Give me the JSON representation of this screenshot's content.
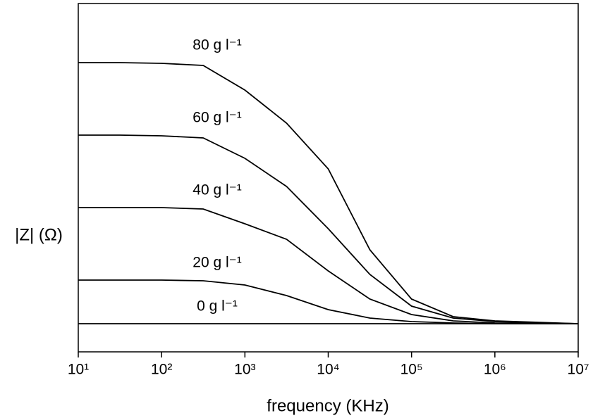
{
  "chart_data": {
    "type": "line",
    "xlabel": "frequency (KHz)",
    "ylabel": "|Z| (Ω)",
    "xscale": "log",
    "x": [
      10,
      31.6,
      100,
      316,
      1000,
      3162,
      10000,
      31623,
      100000,
      316228,
      1000000,
      10000000
    ],
    "xlim": [
      10,
      10000000
    ],
    "xticks": [
      {
        "value": 10,
        "label": "10¹"
      },
      {
        "value": 100,
        "label": "10²"
      },
      {
        "value": 1000,
        "label": "10³"
      },
      {
        "value": 10000,
        "label": "10⁴"
      },
      {
        "value": 100000,
        "label": "10⁵"
      },
      {
        "value": 1000000,
        "label": "10⁶"
      },
      {
        "value": 10000000,
        "label": "10⁷"
      }
    ],
    "ylim": [
      -40,
      455
    ],
    "series": [
      {
        "name": "80 g l⁻¹",
        "color": "#000000",
        "values": [
          371,
          371,
          370,
          367,
          332,
          285,
          220,
          105,
          35,
          10,
          4,
          0
        ]
      },
      {
        "name": "60 g l⁻¹",
        "color": "#000000",
        "values": [
          268,
          268,
          267,
          264,
          235,
          195,
          135,
          70,
          25,
          8,
          3,
          0
        ]
      },
      {
        "name": "40 g l⁻¹",
        "color": "#000000",
        "values": [
          165,
          165,
          165,
          163,
          142,
          120,
          75,
          35,
          13,
          4,
          1,
          0
        ]
      },
      {
        "name": "20 g l⁻¹",
        "color": "#000000",
        "values": [
          62,
          62,
          62,
          61,
          55,
          40,
          20,
          8,
          3,
          1,
          0,
          0
        ]
      },
      {
        "name": "0 g l⁻¹",
        "color": "#000000",
        "values": [
          0,
          0,
          0,
          0,
          0,
          0,
          0,
          0,
          0,
          0,
          0,
          0
        ]
      }
    ]
  }
}
